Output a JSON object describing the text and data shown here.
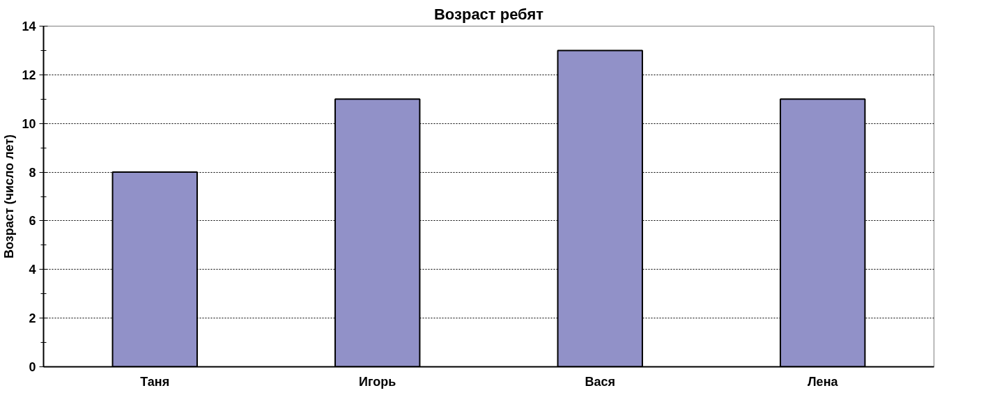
{
  "chart_data": {
    "type": "bar",
    "title": "Возраст ребят",
    "ylabel": "Возраст (число лет)",
    "categories": [
      "Таня",
      "Игорь",
      "Вася",
      "Лена"
    ],
    "values": [
      8,
      11,
      13,
      11
    ],
    "color": "#9191c8",
    "ylim": [
      0,
      14
    ],
    "yticks": [
      0,
      2,
      4,
      6,
      8,
      10,
      12,
      14
    ],
    "grid": "y"
  }
}
